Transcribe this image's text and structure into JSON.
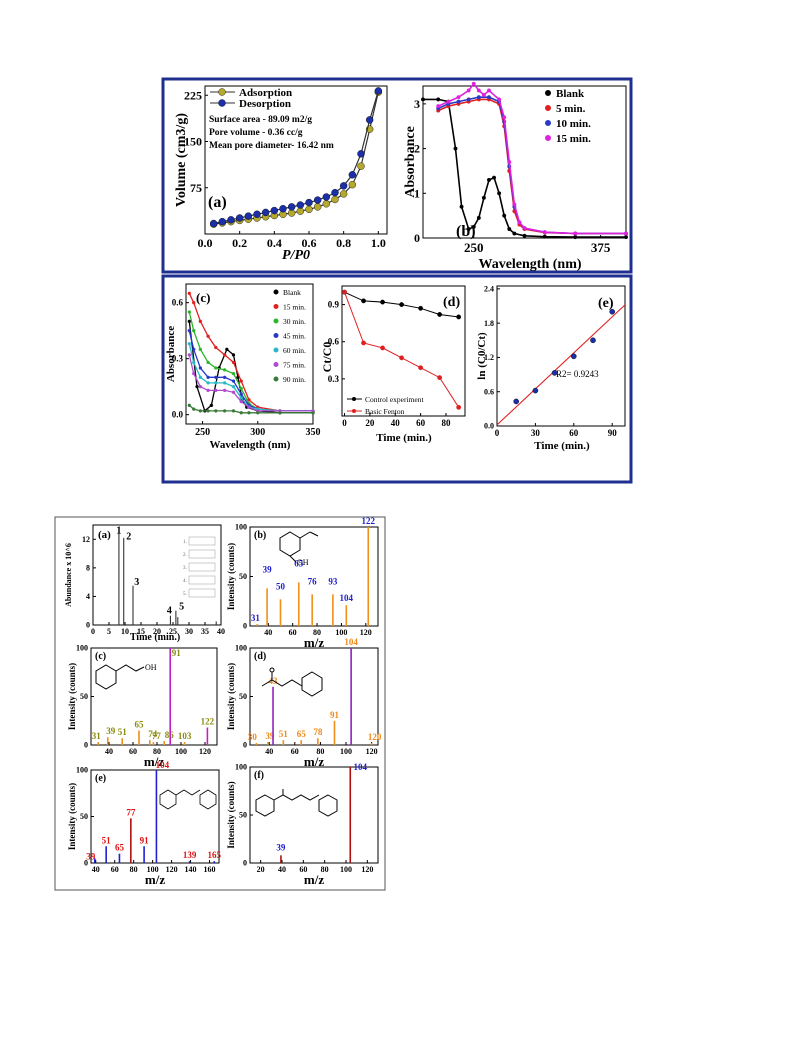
{
  "colors": {
    "frame_blue": "#1f2f8f",
    "frame_gray": "#555555",
    "adsorption": "#b5a82e",
    "desorption": "#1b2fa8",
    "blank": "#000000",
    "red": "#e02020",
    "green": "#2bb52b",
    "magenta": "#e020e0",
    "blue": "#2a3ac8",
    "cyan": "#2ab8c8",
    "purple": "#b04ad0",
    "darkgreen": "#3a7a3a",
    "orange": "#f08a1a",
    "olive": "#8a8a10",
    "stick_orange": "#f0901a",
    "stick_magenta": "#c020c0",
    "stick_purple": "#9020c0",
    "stick_darkred": "#b01010",
    "stick_blue": "#2020d0",
    "label_blue": "#2020d0",
    "label_orange": "#f08a1a",
    "label_olive": "#8a8a10",
    "label_red": "#e01010"
  },
  "chart_data": [
    {
      "id": "a_top",
      "type": "line",
      "panel_label": "(a)",
      "xlabel": "P/P0",
      "ylabel": "Volume (cm3/g)",
      "xlim": [
        0,
        1.05
      ],
      "ylim": [
        0,
        240
      ],
      "xticks": [
        "0.0",
        "0.2",
        "0.4",
        "0.6",
        "0.8",
        "1.0"
      ],
      "yticks": [
        "75",
        "150",
        "225"
      ],
      "legend": [
        "Adsorption",
        "Desorption"
      ],
      "annotations": [
        "Surface area - 89.09 m2/g",
        "Pore volume - 0.36 cc/g",
        "Mean pore diameter- 16.42 nm"
      ],
      "series": [
        {
          "name": "Adsorption",
          "x": [
            0.05,
            0.1,
            0.15,
            0.2,
            0.25,
            0.3,
            0.35,
            0.4,
            0.45,
            0.5,
            0.55,
            0.6,
            0.65,
            0.7,
            0.75,
            0.8,
            0.85,
            0.9,
            0.95,
            1.0
          ],
          "y": [
            16,
            18,
            20,
            22,
            24,
            26,
            28,
            30,
            32,
            34,
            37,
            40,
            44,
            49,
            56,
            65,
            80,
            110,
            170,
            230
          ]
        },
        {
          "name": "Desorption",
          "x": [
            0.05,
            0.1,
            0.15,
            0.2,
            0.25,
            0.3,
            0.35,
            0.4,
            0.45,
            0.5,
            0.55,
            0.6,
            0.65,
            0.7,
            0.75,
            0.8,
            0.85,
            0.9,
            0.95,
            1.0
          ],
          "y": [
            17,
            20,
            23,
            26,
            29,
            32,
            35,
            38,
            41,
            44,
            47,
            51,
            55,
            60,
            67,
            78,
            96,
            130,
            185,
            232
          ]
        }
      ]
    },
    {
      "id": "b_top",
      "type": "line",
      "panel_label": "(b)",
      "xlabel": "Wavelength (nm)",
      "ylabel": "Absorbance",
      "xlim": [
        200,
        400
      ],
      "ylim": [
        0,
        3.4
      ],
      "xticks": [
        "250",
        "375"
      ],
      "yticks": [
        "0",
        "1",
        "2",
        "3"
      ],
      "legend": [
        "Blank",
        "5 min.",
        "10 min.",
        "15 min."
      ],
      "series": [
        {
          "name": "Blank",
          "x": [
            200,
            215,
            225,
            232,
            238,
            245,
            250,
            255,
            260,
            265,
            270,
            275,
            280,
            285,
            290,
            300,
            320,
            350,
            400
          ],
          "y": [
            3.1,
            3.1,
            3.05,
            2.0,
            0.7,
            0.2,
            0.25,
            0.45,
            0.9,
            1.3,
            1.35,
            1.0,
            0.5,
            0.2,
            0.1,
            0.05,
            0.03,
            0.02,
            0.02
          ]
        },
        {
          "name": "5 min.",
          "x": [
            215,
            225,
            235,
            245,
            255,
            265,
            275,
            280,
            285,
            290,
            295,
            300,
            320,
            350,
            400
          ],
          "y": [
            2.85,
            2.95,
            3.0,
            3.05,
            3.1,
            3.1,
            3.0,
            2.5,
            1.5,
            0.6,
            0.3,
            0.2,
            0.12,
            0.1,
            0.1
          ]
        },
        {
          "name": "10 min.",
          "x": [
            215,
            225,
            235,
            245,
            255,
            265,
            275,
            280,
            285,
            290,
            295,
            300,
            320,
            350,
            400
          ],
          "y": [
            2.9,
            3.0,
            3.05,
            3.1,
            3.15,
            3.15,
            3.05,
            2.6,
            1.6,
            0.7,
            0.35,
            0.22,
            0.13,
            0.1,
            0.1
          ]
        },
        {
          "name": "15 min.",
          "x": [
            215,
            225,
            235,
            245,
            250,
            255,
            260,
            265,
            275,
            280,
            285,
            290,
            295,
            300,
            320,
            350,
            400
          ],
          "y": [
            2.95,
            3.05,
            3.15,
            3.3,
            3.45,
            3.3,
            3.2,
            3.3,
            3.1,
            2.7,
            1.7,
            0.75,
            0.35,
            0.22,
            0.13,
            0.1,
            0.1
          ]
        }
      ]
    },
    {
      "id": "c_mid",
      "type": "line",
      "panel_label": "(c)",
      "xlabel": "Wavelength (nm)",
      "ylabel": "Absorbance",
      "xlim": [
        235,
        350
      ],
      "ylim": [
        -0.05,
        0.7
      ],
      "xticks": [
        "250",
        "300",
        "350"
      ],
      "yticks": [
        "0.0",
        "0.3",
        "0.6"
      ],
      "legend": [
        "Blank",
        "15 min.",
        "30 min.",
        "45 min.",
        "60 min.",
        "75 min.",
        "90 min."
      ],
      "series": [
        {
          "name": "Blank",
          "x": [
            238,
            245,
            252,
            258,
            265,
            272,
            278,
            282,
            286,
            290,
            300,
            320,
            350
          ],
          "y": [
            0.5,
            0.15,
            0.02,
            0.05,
            0.25,
            0.35,
            0.32,
            0.2,
            0.08,
            0.04,
            0.02,
            0.01,
            0.01
          ]
        },
        {
          "name": "15 min.",
          "x": [
            238,
            242,
            248,
            255,
            262,
            270,
            278,
            285,
            292,
            300,
            320,
            350
          ],
          "y": [
            0.65,
            0.6,
            0.5,
            0.42,
            0.36,
            0.32,
            0.28,
            0.18,
            0.08,
            0.04,
            0.02,
            0.02
          ]
        },
        {
          "name": "30 min.",
          "x": [
            238,
            242,
            248,
            255,
            262,
            270,
            278,
            285,
            292,
            300,
            320,
            350
          ],
          "y": [
            0.55,
            0.45,
            0.35,
            0.28,
            0.25,
            0.24,
            0.22,
            0.14,
            0.06,
            0.03,
            0.02,
            0.02
          ]
        },
        {
          "name": "45 min.",
          "x": [
            238,
            242,
            248,
            255,
            262,
            270,
            278,
            285,
            292,
            300,
            320,
            350
          ],
          "y": [
            0.45,
            0.35,
            0.25,
            0.2,
            0.2,
            0.2,
            0.18,
            0.11,
            0.05,
            0.03,
            0.02,
            0.02
          ]
        },
        {
          "name": "60 min.",
          "x": [
            238,
            242,
            248,
            255,
            262,
            270,
            278,
            285,
            292,
            300,
            320,
            350
          ],
          "y": [
            0.38,
            0.28,
            0.2,
            0.17,
            0.17,
            0.17,
            0.15,
            0.09,
            0.04,
            0.03,
            0.02,
            0.02
          ]
        },
        {
          "name": "75 min.",
          "x": [
            238,
            242,
            248,
            255,
            262,
            270,
            278,
            285,
            292,
            300,
            320,
            350
          ],
          "y": [
            0.32,
            0.22,
            0.15,
            0.13,
            0.13,
            0.13,
            0.12,
            0.07,
            0.04,
            0.02,
            0.02,
            0.02
          ]
        },
        {
          "name": "90 min.",
          "x": [
            238,
            242,
            248,
            255,
            262,
            270,
            278,
            285,
            292,
            300,
            320,
            350
          ],
          "y": [
            0.05,
            0.03,
            0.02,
            0.02,
            0.02,
            0.02,
            0.02,
            0.01,
            0.01,
            0.01,
            0.01,
            0.01
          ]
        }
      ]
    },
    {
      "id": "d_mid",
      "type": "line",
      "panel_label": "(d)",
      "xlabel": "Time (min.)",
      "ylabel": "Ct/C0",
      "xlim": [
        -2,
        95
      ],
      "ylim": [
        0,
        1.05
      ],
      "xticks": [
        "0",
        "20",
        "40",
        "60",
        "80"
      ],
      "yticks": [
        "0.3",
        "0.6",
        "0.9"
      ],
      "legend": [
        "Control experiment",
        "Basic Fenton"
      ],
      "series": [
        {
          "name": "Control experiment",
          "x": [
            0,
            15,
            30,
            45,
            60,
            75,
            90
          ],
          "y": [
            1.0,
            0.93,
            0.92,
            0.9,
            0.87,
            0.82,
            0.8
          ]
        },
        {
          "name": "Basic Fenton",
          "x": [
            0,
            15,
            30,
            45,
            60,
            75,
            90
          ],
          "y": [
            1.0,
            0.59,
            0.55,
            0.47,
            0.39,
            0.31,
            0.07
          ]
        }
      ]
    },
    {
      "id": "e_mid",
      "type": "scatter",
      "panel_label": "(e)",
      "xlabel": "Time (min.)",
      "ylabel": "ln (C0/Ct)",
      "xlim": [
        0,
        100
      ],
      "ylim": [
        0,
        2.45
      ],
      "xticks": [
        "0",
        "30",
        "60",
        "90"
      ],
      "yticks": [
        "0.0",
        "0.6",
        "1.2",
        "1.8",
        "2.4"
      ],
      "annotation": "R2= 0.9243",
      "series": [
        {
          "name": "data",
          "x": [
            15,
            30,
            45,
            60,
            75,
            90
          ],
          "y": [
            0.43,
            0.62,
            0.93,
            1.22,
            1.5,
            2.0
          ]
        },
        {
          "name": "fit",
          "x": [
            0,
            100
          ],
          "y": [
            0.02,
            2.12
          ]
        }
      ]
    },
    {
      "id": "a_bot",
      "type": "line",
      "panel_label": "(a)",
      "xlabel": "Time (min.)",
      "ylabel": "Abundance x 10^6",
      "xlim": [
        0,
        40
      ],
      "ylim": [
        0,
        14
      ],
      "xticks": [
        "0",
        "5",
        "10",
        "15",
        "20",
        "25",
        "30",
        "35",
        "40"
      ],
      "yticks": [
        "0",
        "4",
        "8",
        "12"
      ],
      "peak_labels": [
        "1",
        "2",
        "3",
        "4",
        "5"
      ],
      "structure_labels": [
        "1.",
        "2.",
        "3.",
        "4.",
        "5."
      ]
    },
    {
      "id": "b_bot",
      "type": "bar",
      "panel_label": "(b)",
      "xlabel": "m/z",
      "ylabel": "Intensity (counts)",
      "xlim": [
        25,
        130
      ],
      "ylim": [
        0,
        100
      ],
      "xticks": [
        "40",
        "60",
        "80",
        "100",
        "120"
      ],
      "yticks": [
        "0",
        "50",
        "100"
      ],
      "peaks": [
        {
          "mz": 31,
          "i": 2
        },
        {
          "mz": 39,
          "i": 38
        },
        {
          "mz": 50,
          "i": 27
        },
        {
          "mz": 65,
          "i": 44
        },
        {
          "mz": 76,
          "i": 32
        },
        {
          "mz": 93,
          "i": 32
        },
        {
          "mz": 104,
          "i": 21
        },
        {
          "mz": 122,
          "i": 100
        }
      ],
      "labels": [
        "31",
        "39",
        "50",
        "65",
        "76",
        "93",
        "104",
        "122"
      ],
      "structure_text": "OH"
    },
    {
      "id": "c_bot",
      "type": "bar",
      "panel_label": "(c)",
      "xlabel": "m/z",
      "ylabel": "Intensity (counts)",
      "xlim": [
        25,
        130
      ],
      "ylim": [
        0,
        100
      ],
      "xticks": [
        "40",
        "60",
        "80",
        "100",
        "120"
      ],
      "yticks": [
        "0",
        "50",
        "100"
      ],
      "peaks": [
        {
          "mz": 31,
          "i": 3
        },
        {
          "mz": 39,
          "i": 8
        },
        {
          "mz": 51,
          "i": 7
        },
        {
          "mz": 65,
          "i": 15
        },
        {
          "mz": 74,
          "i": 5
        },
        {
          "mz": 77,
          "i": 3
        },
        {
          "mz": 86,
          "i": 4
        },
        {
          "mz": 91,
          "i": 100
        },
        {
          "mz": 103,
          "i": 3
        },
        {
          "mz": 122,
          "i": 18
        }
      ],
      "labels": [
        "31",
        "39",
        "51",
        "65",
        "74",
        "77",
        "86",
        "91",
        "103",
        "122"
      ],
      "structure_text": "OH"
    },
    {
      "id": "d_bot",
      "type": "bar",
      "panel_label": "(d)",
      "xlabel": "m/z",
      "ylabel": "Intensity (counts)",
      "xlim": [
        25,
        125
      ],
      "ylim": [
        0,
        100
      ],
      "xticks": [
        "40",
        "60",
        "80",
        "100",
        "120"
      ],
      "yticks": [
        "0",
        "50",
        "100"
      ],
      "peaks": [
        {
          "mz": 30,
          "i": 2
        },
        {
          "mz": 39,
          "i": 3
        },
        {
          "mz": 43,
          "i": 60
        },
        {
          "mz": 51,
          "i": 5
        },
        {
          "mz": 65,
          "i": 5
        },
        {
          "mz": 78,
          "i": 7
        },
        {
          "mz": 91,
          "i": 25
        },
        {
          "mz": 104,
          "i": 100
        },
        {
          "mz": 120,
          "i": 2
        }
      ],
      "labels": [
        "30",
        "39",
        "43",
        "51",
        "65",
        "78",
        "91",
        "104",
        "120"
      ]
    },
    {
      "id": "e_bot",
      "type": "bar",
      "panel_label": "(e)",
      "xlabel": "m/z",
      "ylabel": "Intensity (counts)",
      "xlim": [
        35,
        170
      ],
      "ylim": [
        0,
        100
      ],
      "xticks": [
        "40",
        "60",
        "80",
        "100",
        "120",
        "140",
        "160"
      ],
      "yticks": [
        "0",
        "50",
        "100"
      ],
      "peaks": [
        {
          "mz": 39,
          "i": 5
        },
        {
          "mz": 51,
          "i": 18
        },
        {
          "mz": 65,
          "i": 10
        },
        {
          "mz": 77,
          "i": 48
        },
        {
          "mz": 91,
          "i": 18
        },
        {
          "mz": 104,
          "i": 100
        },
        {
          "mz": 139,
          "i": 2
        },
        {
          "mz": 165,
          "i": 2
        }
      ],
      "labels": [
        "39",
        "51",
        "65",
        "77",
        "91",
        "104",
        "139",
        "165"
      ]
    },
    {
      "id": "f_bot",
      "type": "bar",
      "panel_label": "(f)",
      "xlabel": "m/z",
      "ylabel": "Intensity (counts)",
      "xlim": [
        10,
        130
      ],
      "ylim": [
        0,
        100
      ],
      "xticks": [
        "20",
        "40",
        "60",
        "80",
        "100",
        "120"
      ],
      "yticks": [
        "0",
        "50",
        "100"
      ],
      "peaks": [
        {
          "mz": 39,
          "i": 8
        },
        {
          "mz": 104,
          "i": 100
        }
      ],
      "labels": [
        "39",
        "104"
      ]
    }
  ]
}
